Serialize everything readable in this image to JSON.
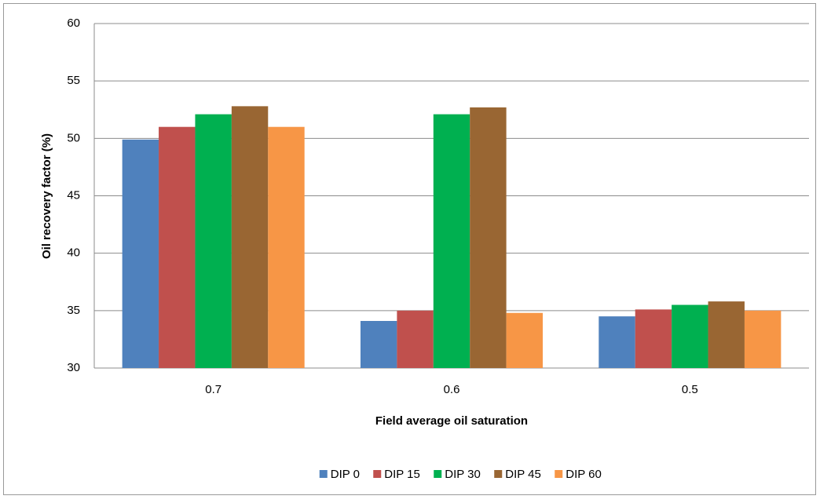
{
  "chart_data": {
    "type": "bar",
    "x_label": "Field average oil saturation",
    "y_label": "Oil recovery factor (%)",
    "categories": [
      "0.7",
      "0.6",
      "0.5"
    ],
    "series": [
      {
        "name": "DIP 0",
        "color": "#4f81bd",
        "values": [
          49.9,
          34.1,
          34.5
        ]
      },
      {
        "name": "DIP 15",
        "color": "#c0504d",
        "values": [
          51.0,
          35.0,
          35.1
        ]
      },
      {
        "name": "DIP 30",
        "color": "#00b050",
        "values": [
          52.1,
          52.1,
          35.5
        ]
      },
      {
        "name": "DIP 45",
        "color": "#996633",
        "values": [
          52.8,
          52.7,
          35.8
        ]
      },
      {
        "name": "DIP 60",
        "color": "#f79646",
        "values": [
          51.0,
          34.8,
          35.0
        ]
      }
    ],
    "ylim": [
      30,
      60
    ],
    "yticks": [
      30,
      35,
      40,
      45,
      50,
      55,
      60
    ],
    "grid": true,
    "legend": "bottom"
  }
}
